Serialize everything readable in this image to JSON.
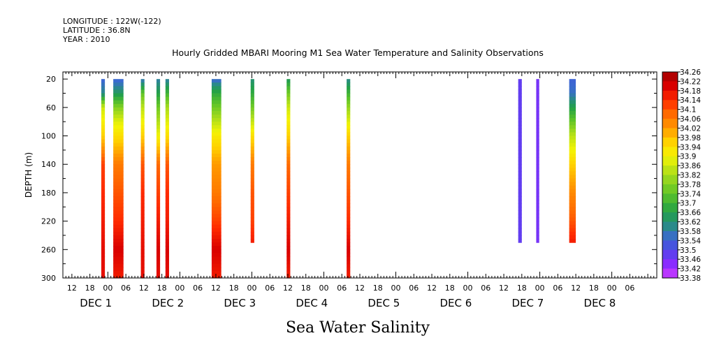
{
  "header": {
    "longitude": "LONGITUDE : 122W(-122)",
    "latitude": "LATITUDE : 36.8N",
    "year": "YEAR : 2010"
  },
  "title": "Hourly Gridded MBARI Mooring M1 Sea Water Temperature and Salinity Observations",
  "bottom_title": "Sea Water Salinity",
  "chart_data": {
    "type": "heatmap",
    "title": "Hourly Gridded MBARI Mooring M1 Sea Water Temperature and Salinity Observations",
    "xlabel": "",
    "ylabel": "DEPTH (m)",
    "colorbar_label": "Sea Water Salinity",
    "ylim": [
      300,
      0
    ],
    "yticks": [
      20,
      60,
      100,
      140,
      180,
      220,
      260,
      300
    ],
    "x_units": "hours since 2010-12-01 00:00",
    "xlim": [
      -15,
      183
    ],
    "x_tick_labels": [
      "12",
      "18",
      "00",
      "06",
      "12",
      "18",
      "00",
      "06",
      "12",
      "18",
      "00",
      "06",
      "12",
      "18",
      "00",
      "06",
      "12",
      "18",
      "00",
      "06",
      "12",
      "18",
      "00",
      "06",
      "12",
      "18",
      "00",
      "06",
      "12",
      "18",
      "00",
      "06"
    ],
    "x_tick_hours": [
      -12,
      -6,
      0,
      6,
      12,
      18,
      24,
      30,
      36,
      42,
      48,
      54,
      60,
      66,
      72,
      78,
      84,
      90,
      96,
      102,
      108,
      114,
      120,
      126,
      132,
      138,
      144,
      150,
      156,
      162,
      168,
      174
    ],
    "day_labels": [
      "DEC  1",
      "DEC  2",
      "DEC  3",
      "DEC  4",
      "DEC  5",
      "DEC  6",
      "DEC  7",
      "DEC  8"
    ],
    "colorbar_levels": [
      "34.26",
      "34.22",
      "34.18",
      "34.14",
      "34.1",
      "34.06",
      "34.02",
      "33.98",
      "33.94",
      "33.9",
      "33.86",
      "33.82",
      "33.78",
      "33.74",
      "33.7",
      "33.66",
      "33.62",
      "33.58",
      "33.54",
      "33.5",
      "33.46",
      "33.42",
      "33.38"
    ],
    "colorbar_min": 33.38,
    "colorbar_max": 34.26,
    "profiles": [
      {
        "x_start": -2.2,
        "x_end": -1.0,
        "max_depth": 300,
        "depths": [
          20,
          40,
          60,
          100,
          140,
          180,
          220,
          260,
          300
        ],
        "salinity": [
          33.54,
          33.6,
          33.86,
          33.96,
          34.12,
          34.14,
          34.16,
          34.18,
          34.18
        ]
      },
      {
        "x_start": 1.8,
        "x_end": 5.2,
        "max_depth": 300,
        "depths": [
          20,
          30,
          40,
          60,
          80,
          100,
          140,
          180,
          220,
          260,
          300
        ],
        "salinity": [
          33.54,
          33.58,
          33.64,
          33.78,
          33.88,
          33.94,
          34.06,
          34.1,
          34.14,
          34.2,
          34.16
        ]
      },
      {
        "x_start": 11.0,
        "x_end": 12.2,
        "max_depth": 300,
        "depths": [
          20,
          40,
          60,
          100,
          140,
          180,
          220,
          260,
          300
        ],
        "salinity": [
          33.56,
          33.74,
          33.84,
          33.96,
          34.1,
          34.14,
          34.16,
          34.18,
          34.18
        ]
      },
      {
        "x_start": 16.2,
        "x_end": 17.4,
        "max_depth": 300,
        "depths": [
          20,
          40,
          60,
          100,
          140,
          180,
          220,
          260,
          300
        ],
        "salinity": [
          33.58,
          33.66,
          33.76,
          33.9,
          34.08,
          34.12,
          34.16,
          34.2,
          34.18
        ]
      },
      {
        "x_start": 19.2,
        "x_end": 20.4,
        "max_depth": 300,
        "depths": [
          20,
          40,
          60,
          100,
          140,
          180,
          220,
          260,
          300
        ],
        "salinity": [
          33.58,
          33.7,
          33.82,
          33.94,
          34.1,
          34.14,
          34.16,
          34.2,
          34.18
        ]
      },
      {
        "x_start": 34.6,
        "x_end": 37.8,
        "max_depth": 300,
        "depths": [
          20,
          30,
          40,
          60,
          80,
          100,
          140,
          180,
          220,
          260,
          300
        ],
        "salinity": [
          33.54,
          33.62,
          33.68,
          33.76,
          33.84,
          33.92,
          34.02,
          34.06,
          34.12,
          34.2,
          34.16
        ]
      },
      {
        "x_start": 47.6,
        "x_end": 48.8,
        "max_depth": 250,
        "depths": [
          20,
          40,
          60,
          100,
          140,
          180,
          220,
          250
        ],
        "salinity": [
          33.62,
          33.68,
          33.76,
          33.94,
          34.06,
          34.1,
          34.12,
          34.16
        ]
      },
      {
        "x_start": 59.6,
        "x_end": 60.8,
        "max_depth": 300,
        "depths": [
          20,
          40,
          60,
          100,
          140,
          180,
          220,
          260,
          300
        ],
        "salinity": [
          33.64,
          33.76,
          33.86,
          33.96,
          34.08,
          34.12,
          34.16,
          34.2,
          34.16
        ]
      },
      {
        "x_start": 79.6,
        "x_end": 80.8,
        "max_depth": 300,
        "depths": [
          20,
          40,
          60,
          100,
          140,
          180,
          220,
          260,
          300
        ],
        "salinity": [
          33.6,
          33.7,
          33.8,
          33.96,
          34.06,
          34.1,
          34.14,
          34.2,
          34.16
        ]
      },
      {
        "x_start": 136.8,
        "x_end": 138.0,
        "max_depth": 250,
        "depths": [
          20,
          250
        ],
        "salinity": [
          33.48,
          33.48
        ]
      },
      {
        "x_start": 142.8,
        "x_end": 143.8,
        "max_depth": 250,
        "depths": [
          20,
          250
        ],
        "salinity": [
          33.46,
          33.46
        ]
      },
      {
        "x_start": 153.8,
        "x_end": 156.0,
        "max_depth": 250,
        "depths": [
          20,
          40,
          60,
          100,
          140,
          180,
          220,
          250
        ],
        "salinity": [
          33.54,
          33.56,
          33.66,
          33.84,
          33.96,
          34.04,
          34.1,
          34.16
        ]
      }
    ],
    "grid": false,
    "legend": "colorbar-right"
  }
}
